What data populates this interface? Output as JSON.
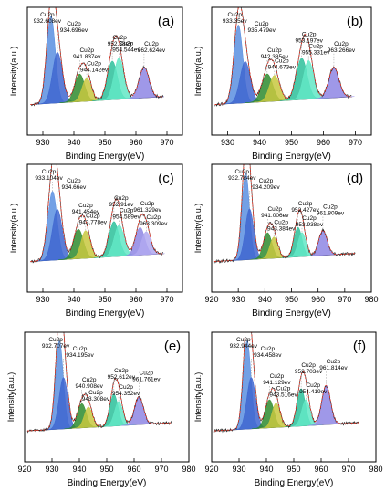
{
  "figure": {
    "ylabel": "Intensity(a.u.)",
    "xlabel": "Binding Energy(eV)"
  },
  "chart_data": [
    {
      "type": "line",
      "panel": "(a)",
      "xlim": [
        925,
        975
      ],
      "xticks": [
        930,
        940,
        950,
        960,
        970
      ],
      "xlabel": "Binding Energy(eV)",
      "ylabel": "Intensity(a.u.)",
      "peaks": [
        {
          "element": "Cu2p",
          "value": "932.608ev",
          "x": 932.608,
          "height": 0.95,
          "width": 1.4,
          "color": "#5a8fe0"
        },
        {
          "element": "Cu2p",
          "value": "934.696ev",
          "x": 934.696,
          "height": 0.55,
          "width": 1.6,
          "color": "#3f66d0"
        },
        {
          "element": "Cu2p",
          "value": "941.837ev",
          "x": 941.837,
          "height": 0.3,
          "width": 1.6,
          "color": "#2e8b2e"
        },
        {
          "element": "Cu2p",
          "value": "944.142ev",
          "x": 944.142,
          "height": 0.25,
          "width": 1.5,
          "color": "#c8c840"
        },
        {
          "element": "Cu2p",
          "value": "952.38ev",
          "x": 952.38,
          "height": 0.42,
          "width": 1.6,
          "color": "#2bbf9a"
        },
        {
          "element": "Cu2p",
          "value": "954.544ev",
          "x": 954.544,
          "height": 0.45,
          "width": 1.6,
          "color": "#62e8c6"
        },
        {
          "element": "Cu2p",
          "value": "962.624ev",
          "x": 962.624,
          "height": 0.33,
          "width": 1.6,
          "color": "#8e86e4"
        }
      ]
    },
    {
      "type": "line",
      "panel": "(b)",
      "xlim": [
        925,
        975
      ],
      "xticks": [
        930,
        940,
        950,
        960,
        970
      ],
      "xlabel": "Binding Energy(eV)",
      "ylabel": "Intensity(a.u.)",
      "peaks": [
        {
          "element": "Cu2p",
          "value": "933.35ev",
          "x": 933.35,
          "height": 0.85,
          "width": 1.4,
          "color": "#5a8fe0"
        },
        {
          "element": "Cu2p",
          "value": "935.479ev",
          "x": 935.479,
          "height": 0.45,
          "width": 1.6,
          "color": "#3f66d0"
        },
        {
          "element": "Cu2p",
          "value": "942.385ev",
          "x": 942.385,
          "height": 0.3,
          "width": 1.7,
          "color": "#2e8b2e"
        },
        {
          "element": "Cu2p",
          "value": "944.673ev",
          "x": 944.673,
          "height": 0.28,
          "width": 1.6,
          "color": "#c8c840"
        },
        {
          "element": "Cu2p",
          "value": "953.197ev",
          "x": 953.197,
          "height": 0.45,
          "width": 1.7,
          "color": "#2bbf9a"
        },
        {
          "element": "Cu2p",
          "value": "955.331ev",
          "x": 955.331,
          "height": 0.42,
          "width": 1.6,
          "color": "#62e8c6"
        },
        {
          "element": "Cu2p",
          "value": "963.266ev",
          "x": 963.266,
          "height": 0.33,
          "width": 1.6,
          "color": "#8e86e4"
        }
      ]
    },
    {
      "type": "line",
      "panel": "(c)",
      "xlim": [
        925,
        975
      ],
      "xticks": [
        930,
        940,
        950,
        960,
        970
      ],
      "xlabel": "Binding Energy(eV)",
      "ylabel": "Intensity(a.u.)",
      "peaks": [
        {
          "element": "Cu2p",
          "value": "933.104ev",
          "x": 933.104,
          "height": 0.75,
          "width": 1.5,
          "color": "#5a8fe0"
        },
        {
          "element": "Cu2p",
          "value": "934.66ev",
          "x": 934.66,
          "height": 0.55,
          "width": 1.6,
          "color": "#3f66d0"
        },
        {
          "element": "Cu2p",
          "value": "941.454ev",
          "x": 941.454,
          "height": 0.32,
          "width": 1.6,
          "color": "#2e8b2e"
        },
        {
          "element": "Cu2p",
          "value": "943.778ev",
          "x": 943.778,
          "height": 0.3,
          "width": 1.5,
          "color": "#c8c840"
        },
        {
          "element": "Cu2p",
          "value": "952.91ev",
          "x": 952.91,
          "height": 0.38,
          "width": 1.6,
          "color": "#2bbf9a"
        },
        {
          "element": "Cu2p",
          "value": "954.589ev",
          "x": 954.589,
          "height": 0.34,
          "width": 1.6,
          "color": "#62e8c6"
        },
        {
          "element": "Cu2p",
          "value": "961.329ev",
          "x": 961.329,
          "height": 0.3,
          "width": 1.5,
          "color": "#8e86e4"
        },
        {
          "element": "Cu2p",
          "value": "963.309ev",
          "x": 963.309,
          "height": 0.25,
          "width": 1.5,
          "color": "#b0a8f0"
        }
      ]
    },
    {
      "type": "line",
      "panel": "(d)",
      "xlim": [
        920,
        980
      ],
      "xticks": [
        920,
        930,
        940,
        950,
        960,
        970,
        980
      ],
      "xlabel": "Binding Energy(eV)",
      "ylabel": "Intensity(a.u.)",
      "peaks": [
        {
          "element": "Cu2p",
          "value": "932.784ev",
          "x": 932.784,
          "height": 0.95,
          "width": 1.4,
          "color": "#5a8fe0"
        },
        {
          "element": "Cu2p",
          "value": "934.209ev",
          "x": 934.209,
          "height": 0.55,
          "width": 1.6,
          "color": "#3f66d0"
        },
        {
          "element": "Cu2p",
          "value": "941.006ev",
          "x": 941.006,
          "height": 0.28,
          "width": 1.6,
          "color": "#2e8b2e"
        },
        {
          "element": "Cu2p",
          "value": "943.384ev",
          "x": 943.384,
          "height": 0.23,
          "width": 1.5,
          "color": "#c8c840"
        },
        {
          "element": "Cu2p",
          "value": "952.427ev",
          "x": 952.427,
          "height": 0.32,
          "width": 1.5,
          "color": "#2bbf9a"
        },
        {
          "element": "Cu2p",
          "value": "953.938ev",
          "x": 953.938,
          "height": 0.26,
          "width": 1.5,
          "color": "#62e8c6"
        },
        {
          "element": "Cu2p",
          "value": "961.809ev",
          "x": 961.809,
          "height": 0.27,
          "width": 1.6,
          "color": "#8e86e4"
        }
      ]
    },
    {
      "type": "line",
      "panel": "(e)",
      "xlim": [
        920,
        980
      ],
      "xticks": [
        920,
        930,
        940,
        950,
        960,
        970,
        980
      ],
      "xlabel": "Binding Energy(eV)",
      "ylabel": "Intensity(a.u.)",
      "peaks": [
        {
          "element": "Cu2p",
          "value": "932.707ev",
          "x": 932.707,
          "height": 0.95,
          "width": 1.4,
          "color": "#5a8fe0"
        },
        {
          "element": "Cu2p",
          "value": "934.195ev",
          "x": 934.195,
          "height": 0.55,
          "width": 1.6,
          "color": "#3f66d0"
        },
        {
          "element": "Cu2p",
          "value": "940.908ev",
          "x": 940.908,
          "height": 0.26,
          "width": 1.6,
          "color": "#2e8b2e"
        },
        {
          "element": "Cu2p",
          "value": "943.308ev",
          "x": 943.308,
          "height": 0.22,
          "width": 1.5,
          "color": "#c8c840"
        },
        {
          "element": "Cu2p",
          "value": "952.612ev",
          "x": 952.612,
          "height": 0.34,
          "width": 1.5,
          "color": "#2bbf9a"
        },
        {
          "element": "Cu2p",
          "value": "954.352ev",
          "x": 954.352,
          "height": 0.26,
          "width": 1.5,
          "color": "#62e8c6"
        },
        {
          "element": "Cu2p",
          "value": "961.761ev",
          "x": 961.761,
          "height": 0.3,
          "width": 1.6,
          "color": "#8e86e4"
        }
      ]
    },
    {
      "type": "line",
      "panel": "(f)",
      "xlim": [
        920,
        980
      ],
      "xticks": [
        920,
        930,
        940,
        950,
        960,
        970,
        980
      ],
      "xlabel": "Binding Energy(eV)",
      "ylabel": "Intensity(a.u.)",
      "peaks": [
        {
          "element": "Cu2p",
          "value": "932.944ev",
          "x": 932.944,
          "height": 0.95,
          "width": 1.4,
          "color": "#5a8fe0"
        },
        {
          "element": "Cu2p",
          "value": "934.458ev",
          "x": 934.458,
          "height": 0.55,
          "width": 1.6,
          "color": "#3f66d0"
        },
        {
          "element": "Cu2p",
          "value": "941.129ev",
          "x": 941.129,
          "height": 0.3,
          "width": 1.6,
          "color": "#2e8b2e"
        },
        {
          "element": "Cu2p",
          "value": "943.516ev",
          "x": 943.516,
          "height": 0.26,
          "width": 1.5,
          "color": "#c8c840"
        },
        {
          "element": "Cu2p",
          "value": "952.703ev",
          "x": 952.703,
          "height": 0.4,
          "width": 1.5,
          "color": "#2bbf9a"
        },
        {
          "element": "Cu2p",
          "value": "954.419ev",
          "x": 954.419,
          "height": 0.28,
          "width": 1.5,
          "color": "#62e8c6"
        },
        {
          "element": "Cu2p",
          "value": "961.814ev",
          "x": 961.814,
          "height": 0.42,
          "width": 1.6,
          "color": "#8e86e4"
        }
      ]
    }
  ]
}
